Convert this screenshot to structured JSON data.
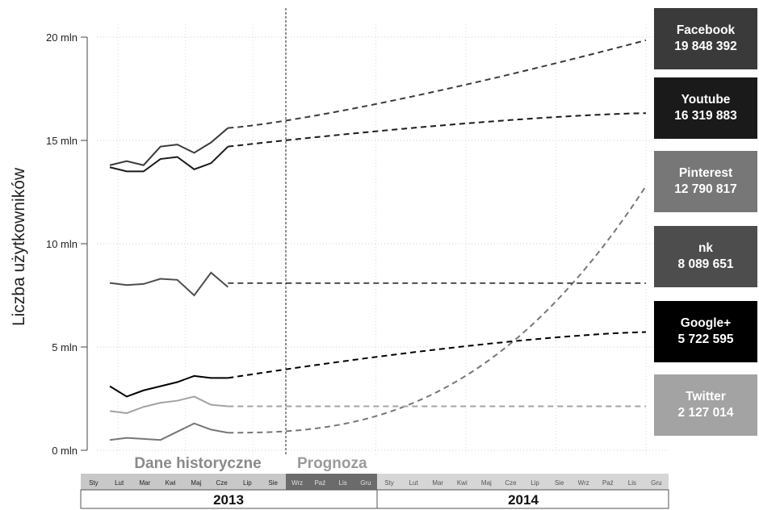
{
  "chart_data": {
    "type": "line",
    "ylabel": "Liczba użytkowników",
    "y_tick_labels": [
      "0 mln",
      "5 mln",
      "10 mln",
      "15 mln",
      "20 mln"
    ],
    "y_ticks": [
      0,
      5000000,
      10000000,
      15000000,
      20000000
    ],
    "ylim": [
      -300000,
      20500000
    ],
    "grid": true,
    "months": [
      "Sty",
      "Lut",
      "Mar",
      "Kwi",
      "Maj",
      "Cze",
      "Lip",
      "Sie",
      "Wrz",
      "Paź",
      "Lis",
      "Gru",
      "Sty",
      "Lut",
      "Mar",
      "Kwi",
      "Maj",
      "Cze",
      "Lip",
      "Sie",
      "Wrz",
      "Paź",
      "Lis",
      "Gru"
    ],
    "years": [
      "2013",
      "2014"
    ],
    "section_labels": {
      "historical": "Dane historyczne",
      "forecast": "Prognoza"
    },
    "historical_months": 8,
    "series": [
      {
        "name": "Facebook",
        "value_label": "19 848 392",
        "color": "#3a3a3a",
        "historical": [
          13800000,
          14000000,
          13800000,
          14700000,
          14800000,
          14400000,
          14900000,
          15600000
        ],
        "forecast_end": 19848392,
        "forecast_shape": "convex"
      },
      {
        "name": "Youtube",
        "value_label": "16 319 883",
        "color": "#1a1a1a",
        "historical": [
          13700000,
          13500000,
          13500000,
          14100000,
          14200000,
          13600000,
          13900000,
          14700000
        ],
        "forecast_end": 16319883,
        "forecast_shape": "concave"
      },
      {
        "name": "Pinterest",
        "value_label": "12 790 817",
        "color": "#777777",
        "historical": [
          500000,
          600000,
          550000,
          500000,
          900000,
          1300000,
          1000000,
          850000
        ],
        "forecast_end": 12790817,
        "forecast_shape": "exponential"
      },
      {
        "name": "nk",
        "value_label": "8 089 651",
        "color": "#4d4d4d",
        "historical": [
          8100000,
          8000000,
          8050000,
          8300000,
          8250000,
          7500000,
          8600000,
          7900000
        ],
        "forecast_end": 8089651,
        "forecast_shape": "flat"
      },
      {
        "name": "Google+",
        "value_label": "5 722 595",
        "color": "#000000",
        "historical": [
          3100000,
          2600000,
          2900000,
          3100000,
          3300000,
          3600000,
          3500000,
          3500000
        ],
        "forecast_end": 5722595,
        "forecast_shape": "concave"
      },
      {
        "name": "Twitter",
        "value_label": "2 127 014",
        "color": "#a3a3a3",
        "historical": [
          1900000,
          1800000,
          2100000,
          2300000,
          2400000,
          2600000,
          2200000,
          2127014
        ],
        "forecast_end": 2127014,
        "forecast_shape": "flat"
      }
    ]
  }
}
